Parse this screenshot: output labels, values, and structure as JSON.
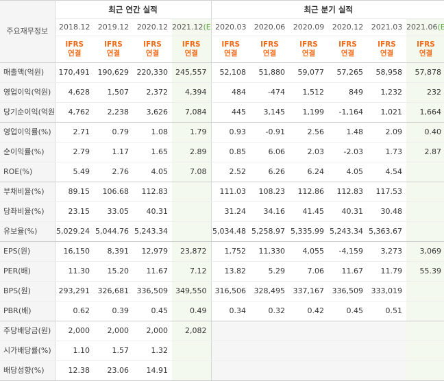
{
  "header": {
    "row_label": "주요재무정보",
    "annual_title": "최근 연간 실적",
    "quarterly_title": "최근 분기 실적",
    "periods": [
      "2018.12",
      "2019.12",
      "2020.12",
      "2021.12",
      "2020.03",
      "2020.06",
      "2020.09",
      "2020.12",
      "2021.03",
      "2021.06"
    ],
    "estimate_mark": "(E)",
    "ifrs_line1": "IFRS",
    "ifrs_line2": "연결"
  },
  "rows": [
    {
      "label": "매출액(억원)",
      "values": [
        "170,491",
        "190,629",
        "220,330",
        "245,557",
        "52,108",
        "51,880",
        "59,077",
        "57,265",
        "58,958",
        "57,878"
      ]
    },
    {
      "label": "영업이익(억원)",
      "values": [
        "4,628",
        "1,507",
        "2,372",
        "4,394",
        "484",
        "-474",
        "1,512",
        "849",
        "1,232",
        "232"
      ]
    },
    {
      "label": "당기순이익(억원)",
      "values": [
        "4,762",
        "2,238",
        "3,626",
        "7,084",
        "445",
        "3,145",
        "1,199",
        "-1,164",
        "1,021",
        "1,664"
      ]
    },
    {
      "label": "영업이익률(%)",
      "values": [
        "2.71",
        "0.79",
        "1.08",
        "1.79",
        "0.93",
        "-0.91",
        "2.56",
        "1.48",
        "2.09",
        "0.40"
      ]
    },
    {
      "label": "순이익률(%)",
      "values": [
        "2.79",
        "1.17",
        "1.65",
        "2.89",
        "0.85",
        "6.06",
        "2.03",
        "-2.03",
        "1.73",
        "2.87"
      ]
    },
    {
      "label": "ROE(%)",
      "values": [
        "5.49",
        "2.76",
        "4.05",
        "7.08",
        "2.52",
        "6.26",
        "6.24",
        "4.05",
        "4.54",
        ""
      ]
    },
    {
      "label": "부채비율(%)",
      "values": [
        "89.15",
        "106.68",
        "112.83",
        "",
        "111.03",
        "108.23",
        "112.86",
        "112.83",
        "117.53",
        ""
      ]
    },
    {
      "label": "당좌비율(%)",
      "values": [
        "23.15",
        "33.05",
        "40.31",
        "",
        "31.24",
        "34.16",
        "41.45",
        "40.31",
        "30.48",
        ""
      ]
    },
    {
      "label": "유보율(%)",
      "values": [
        "5,029.24",
        "5,044.76",
        "5,243.34",
        "",
        "5,034.48",
        "5,258.97",
        "5,335.99",
        "5,243.34",
        "5,363.67",
        ""
      ]
    },
    {
      "label": "EPS(원)",
      "values": [
        "16,150",
        "8,391",
        "12,979",
        "23,872",
        "1,752",
        "11,330",
        "4,055",
        "-4,159",
        "3,273",
        "3,069"
      ]
    },
    {
      "label": "PER(배)",
      "values": [
        "11.30",
        "15.20",
        "11.67",
        "7.12",
        "13.82",
        "5.29",
        "7.06",
        "11.67",
        "11.79",
        "55.39"
      ]
    },
    {
      "label": "BPS(원)",
      "values": [
        "293,291",
        "326,681",
        "336,509",
        "349,550",
        "316,506",
        "328,495",
        "337,167",
        "336,509",
        "333,019",
        ""
      ]
    },
    {
      "label": "PBR(배)",
      "values": [
        "0.62",
        "0.39",
        "0.45",
        "0.49",
        "0.34",
        "0.32",
        "0.42",
        "0.45",
        "0.51",
        ""
      ]
    },
    {
      "label": "주당배당금(원)",
      "values": [
        "2,000",
        "2,000",
        "2,000",
        "2,082",
        "",
        "",
        "",
        "",
        "",
        ""
      ]
    },
    {
      "label": "시가배당률(%)",
      "values": [
        "1.10",
        "1.57",
        "1.32",
        "",
        "",
        "",
        "",
        "",
        "",
        ""
      ]
    },
    {
      "label": "배당성향(%)",
      "values": [
        "12.38",
        "23.06",
        "14.91",
        "",
        "",
        "",
        "",
        "",
        "",
        ""
      ]
    }
  ]
}
